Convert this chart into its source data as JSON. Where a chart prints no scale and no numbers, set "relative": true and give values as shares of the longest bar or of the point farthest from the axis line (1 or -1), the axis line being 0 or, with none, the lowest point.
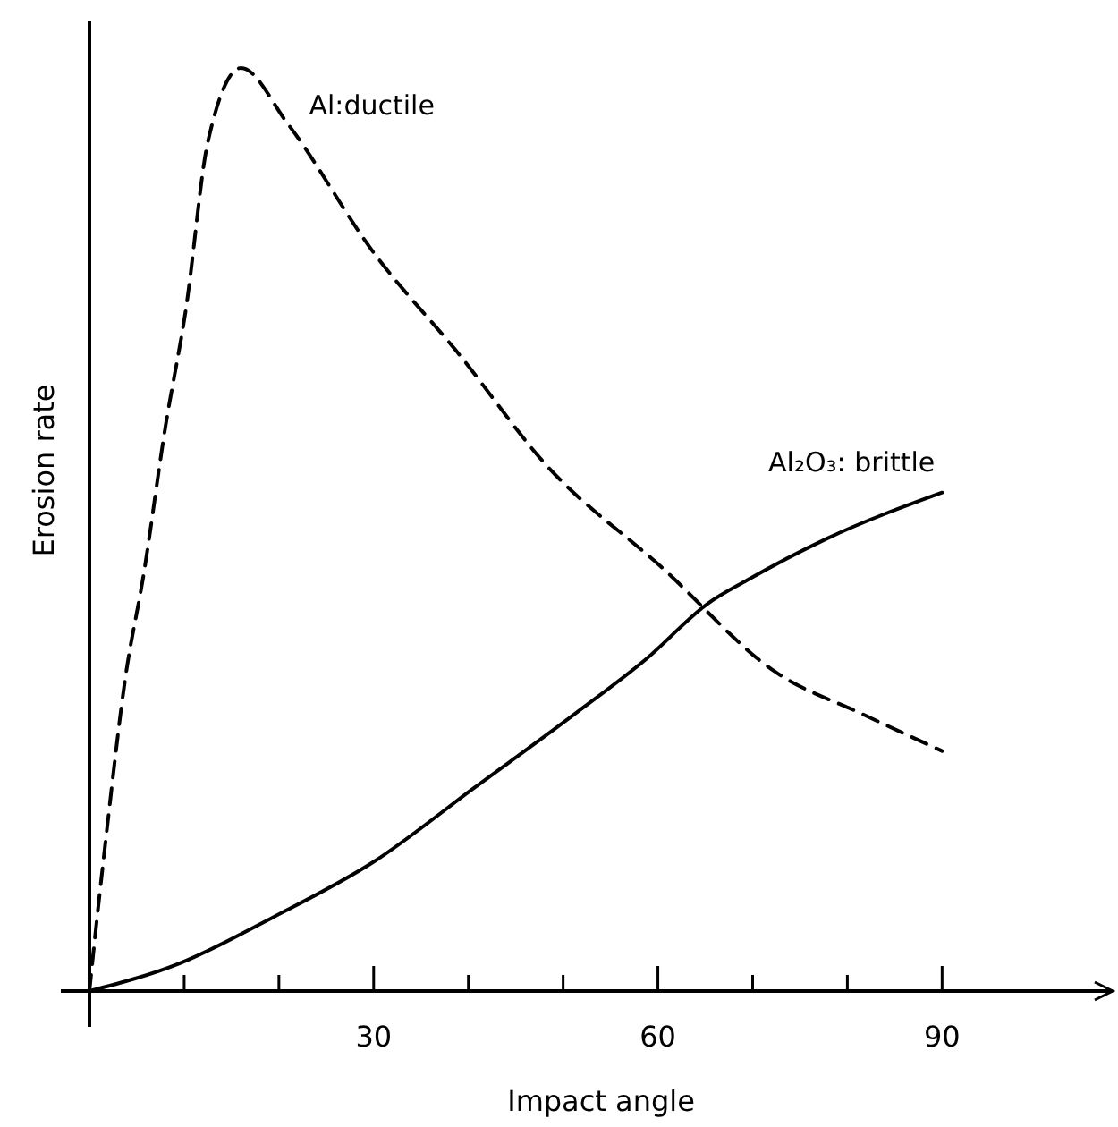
{
  "chart_data": {
    "type": "line",
    "relative": true,
    "xlabel": "Impact angle",
    "ylabel": "Erosion rate",
    "xlim": [
      0,
      108
    ],
    "xticks": [
      {
        "value": 10,
        "label": null
      },
      {
        "value": 20,
        "label": null
      },
      30,
      {
        "value": 40,
        "label": null
      },
      {
        "value": 50,
        "label": null
      },
      60,
      {
        "value": 70,
        "label": null
      },
      {
        "value": 80,
        "label": null
      },
      90
    ],
    "legend": false,
    "grid": false,
    "marker": "none",
    "series": [
      {
        "name": "Al:ductile",
        "color": "#000000",
        "line_style": "dashed",
        "x": [
          0,
          0.4,
          1.9,
          3.8,
          5.7,
          8,
          10.2,
          12.5,
          16,
          20.9,
          30,
          39,
          48.2,
          60.3,
          72.5,
          81.6,
          90
        ],
        "values": [
          0,
          0.04,
          0.18,
          0.34,
          0.45,
          0.61,
          0.74,
          0.92,
          1,
          0.94,
          0.8,
          0.69,
          0.57,
          0.46,
          0.345,
          0.3,
          0.26
        ]
      },
      {
        "name": "Al₂O₃: brittle",
        "color": "#000000",
        "line_style": "solid",
        "x": [
          0,
          9.5,
          19.4,
          30,
          40.6,
          51.2,
          58.8,
          65.3,
          69.4,
          77.8,
          90
        ],
        "values": [
          0,
          0.03,
          0.08,
          0.14,
          0.22,
          0.3,
          0.36,
          0.42,
          0.445,
          0.49,
          0.54
        ]
      }
    ]
  }
}
